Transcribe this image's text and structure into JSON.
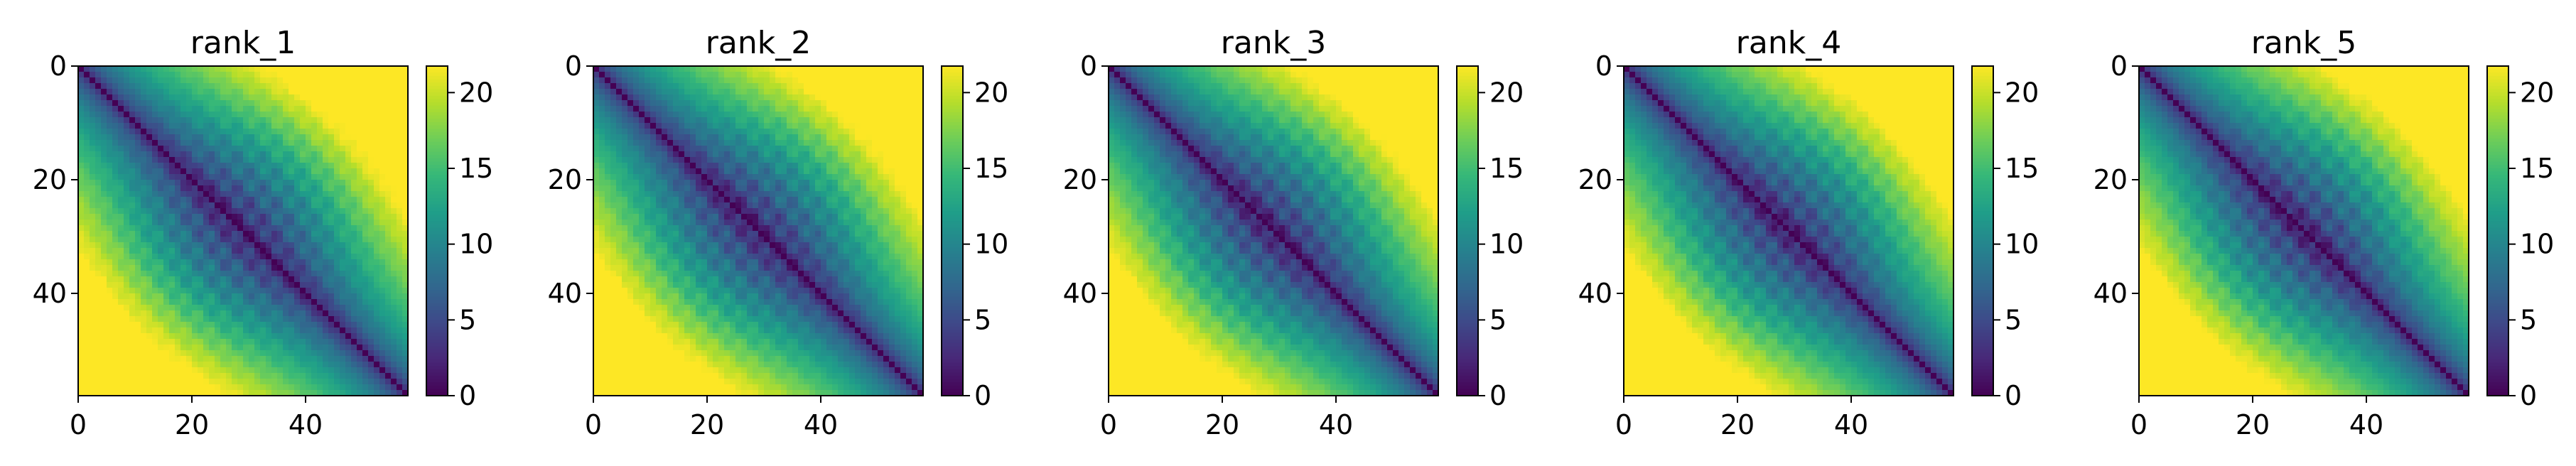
{
  "chart_data": [
    {
      "type": "heatmap",
      "title": "rank_1",
      "variant": 0,
      "matrix_size": 58,
      "x_ticks": [
        0,
        20,
        40
      ],
      "y_ticks": [
        0,
        20,
        40
      ],
      "colorbar_ticks": [
        0,
        5,
        10,
        15,
        20
      ],
      "color_range": [
        0,
        21.75
      ],
      "colormap": "viridis",
      "xlabel": "",
      "ylabel": ""
    },
    {
      "type": "heatmap",
      "title": "rank_2",
      "variant": 1,
      "matrix_size": 58,
      "x_ticks": [
        0,
        20,
        40
      ],
      "y_ticks": [
        0,
        20,
        40
      ],
      "colorbar_ticks": [
        0,
        5,
        10,
        15,
        20
      ],
      "color_range": [
        0,
        21.75
      ],
      "colormap": "viridis",
      "xlabel": "",
      "ylabel": ""
    },
    {
      "type": "heatmap",
      "title": "rank_3",
      "variant": 2,
      "matrix_size": 58,
      "x_ticks": [
        0,
        20,
        40
      ],
      "y_ticks": [
        0,
        20,
        40
      ],
      "colorbar_ticks": [
        0,
        5,
        10,
        15,
        20
      ],
      "color_range": [
        0,
        21.75
      ],
      "colormap": "viridis",
      "xlabel": "",
      "ylabel": ""
    },
    {
      "type": "heatmap",
      "title": "rank_4",
      "variant": 3,
      "matrix_size": 58,
      "x_ticks": [
        0,
        20,
        40
      ],
      "y_ticks": [
        0,
        20,
        40
      ],
      "colorbar_ticks": [
        0,
        5,
        10,
        15,
        20
      ],
      "color_range": [
        0,
        21.75
      ],
      "colormap": "viridis",
      "xlabel": "",
      "ylabel": ""
    },
    {
      "type": "heatmap",
      "title": "rank_5",
      "variant": 4,
      "matrix_size": 58,
      "x_ticks": [
        0,
        20,
        40
      ],
      "y_ticks": [
        0,
        20,
        40
      ],
      "colorbar_ticks": [
        0,
        5,
        10,
        15,
        20
      ],
      "color_range": [
        0,
        21.75
      ],
      "colormap": "viridis",
      "xlabel": "",
      "ylabel": ""
    }
  ],
  "colors": {
    "colormap_stops": [
      "#440154",
      "#482878",
      "#3e4989",
      "#31688e",
      "#26828e",
      "#1f9e89",
      "#35b779",
      "#6ece58",
      "#b5de2b",
      "#fde725"
    ]
  }
}
